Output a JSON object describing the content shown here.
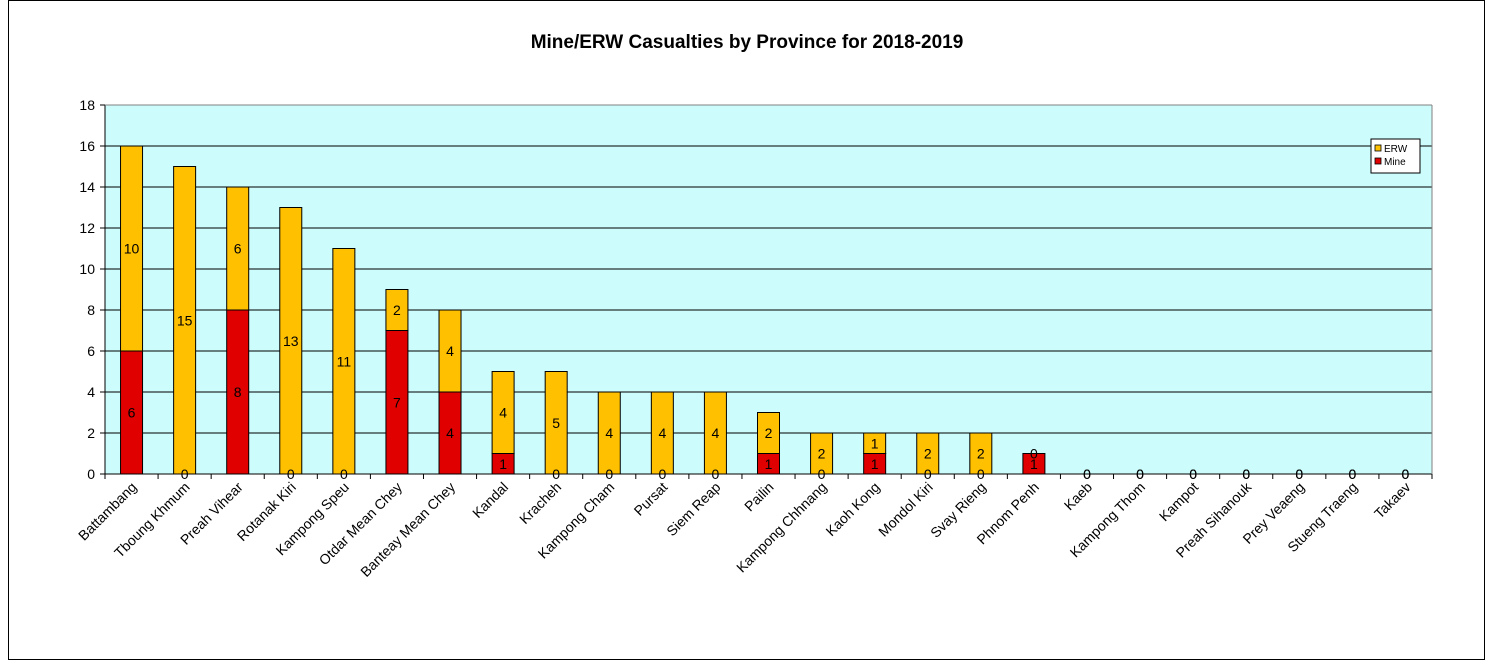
{
  "chart_data": {
    "type": "bar",
    "stacked": true,
    "title": "Mine/ERW Casualties by Province for 2018-2019",
    "xlabel": "",
    "ylabel": "",
    "ylim": [
      0,
      18
    ],
    "yticks": [
      0,
      2,
      4,
      6,
      8,
      10,
      12,
      14,
      16,
      18
    ],
    "grid": true,
    "legend_position": "top-right",
    "categories": [
      "Battambang",
      "Tboung Khmum",
      "Preah Vihear",
      "Rotanak Kiri",
      "Kampong Speu",
      "Otdar Mean Chey",
      "Banteay Mean Chey",
      "Kandal",
      "Kracheh",
      "Kampong Cham",
      "Pursat",
      "Siem Reap",
      "Pailin",
      "Kampong Chhnang",
      "Kaoh Kong",
      "Mondol Kiri",
      "Svay Rieng",
      "Phnom Penh",
      "Kaeb",
      "Kampong Thom",
      "Kampot",
      "Preah Sihanouk",
      "Prey Veaeng",
      "Stueng Traeng",
      "Takaev"
    ],
    "series": [
      {
        "name": "Mine",
        "color": "#e00000",
        "values": [
          6,
          0,
          8,
          0,
          0,
          7,
          4,
          1,
          0,
          0,
          0,
          0,
          1,
          0,
          1,
          0,
          0,
          1,
          0,
          0,
          0,
          0,
          0,
          0,
          0
        ]
      },
      {
        "name": "ERW",
        "color": "#ffc000",
        "values": [
          10,
          15,
          6,
          13,
          11,
          2,
          4,
          4,
          5,
          4,
          4,
          4,
          2,
          2,
          1,
          2,
          2,
          0,
          0,
          0,
          0,
          0,
          0,
          0,
          0
        ]
      }
    ],
    "plot_background": "#ccfcfc"
  }
}
